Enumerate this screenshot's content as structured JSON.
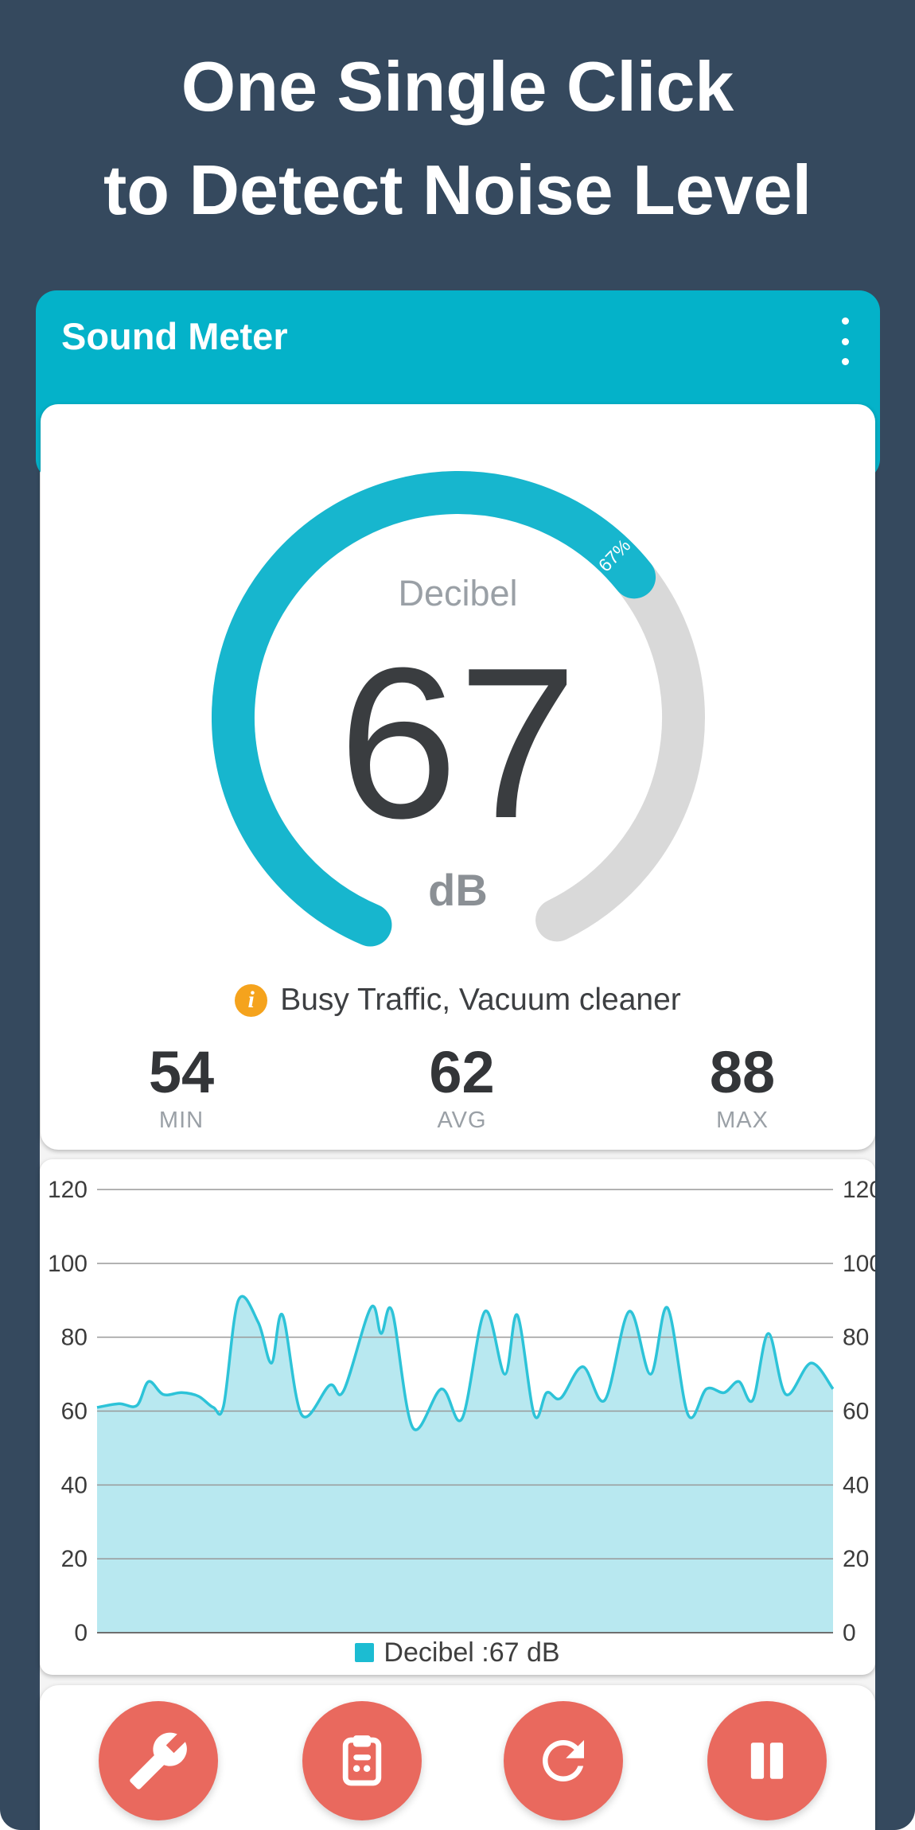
{
  "page": {
    "background": "#35495e",
    "card_background": "#ffffff"
  },
  "headline": {
    "line1": "One Single Click",
    "line2": "to Detect Noise Level"
  },
  "appbar": {
    "title": "Sound Meter",
    "menu_icon": "kebab-menu",
    "color": "#04b2c9"
  },
  "gauge": {
    "label": "Decibel",
    "value": "67",
    "unit": "dB",
    "percent": 67,
    "percent_label": "67%",
    "arc_color": "#17b6ce",
    "track_color": "#d9d9d9",
    "start_deg": 203,
    "sweep_deg": 311,
    "stroke_width": 54,
    "radius": 283
  },
  "noise_info": {
    "icon": "info-icon",
    "icon_color": "#f5a31d",
    "text": "Busy Traffic, Vacuum cleaner"
  },
  "stats": [
    {
      "value": "54",
      "label": "MIN"
    },
    {
      "value": "62",
      "label": "AVG"
    },
    {
      "value": "88",
      "label": "MAX"
    }
  ],
  "chart_data": {
    "type": "area",
    "title": "",
    "xlabel": "",
    "ylabel": "",
    "ylim": [
      0,
      120
    ],
    "yticks": [
      0,
      20,
      40,
      60,
      80,
      100,
      120
    ],
    "grid": true,
    "grid_color": "#999999",
    "axis_color": "#6f6f6f",
    "tick_color": "#3c3c3c",
    "legend": {
      "label": "Decibel :67 dB",
      "color": "#1cbcd2",
      "position": "bottom"
    },
    "series": [
      {
        "name": "Decibel",
        "stroke": "#2dc3d8",
        "fill": "#b8e8f0",
        "points": [
          [
            0.0,
            61
          ],
          [
            0.03,
            62
          ],
          [
            0.054,
            61.5
          ],
          [
            0.07,
            68
          ],
          [
            0.09,
            64.5
          ],
          [
            0.115,
            65
          ],
          [
            0.138,
            64
          ],
          [
            0.158,
            61
          ],
          [
            0.172,
            61.5
          ],
          [
            0.192,
            90
          ],
          [
            0.219,
            84
          ],
          [
            0.237,
            73
          ],
          [
            0.252,
            86
          ],
          [
            0.278,
            59
          ],
          [
            0.316,
            67
          ],
          [
            0.335,
            65.5
          ],
          [
            0.372,
            88
          ],
          [
            0.386,
            81
          ],
          [
            0.401,
            87
          ],
          [
            0.429,
            55.5
          ],
          [
            0.468,
            66
          ],
          [
            0.496,
            58
          ],
          [
            0.527,
            87
          ],
          [
            0.554,
            70
          ],
          [
            0.571,
            86
          ],
          [
            0.594,
            59
          ],
          [
            0.611,
            65
          ],
          [
            0.63,
            63.5
          ],
          [
            0.66,
            72
          ],
          [
            0.69,
            63
          ],
          [
            0.723,
            87
          ],
          [
            0.752,
            70
          ],
          [
            0.775,
            88
          ],
          [
            0.803,
            59
          ],
          [
            0.828,
            66
          ],
          [
            0.852,
            65
          ],
          [
            0.872,
            68
          ],
          [
            0.891,
            63
          ],
          [
            0.912,
            81
          ],
          [
            0.936,
            64.5
          ],
          [
            0.97,
            73
          ],
          [
            1.0,
            66
          ]
        ]
      }
    ]
  },
  "controls": [
    {
      "name": "settings",
      "icon": "wrench-icon",
      "color": "#e9695e"
    },
    {
      "name": "records",
      "icon": "clipboard-icon",
      "color": "#e9695e"
    },
    {
      "name": "reset",
      "icon": "refresh-icon",
      "color": "#e9695e"
    },
    {
      "name": "pause",
      "icon": "pause-icon",
      "color": "#e9695e"
    }
  ]
}
